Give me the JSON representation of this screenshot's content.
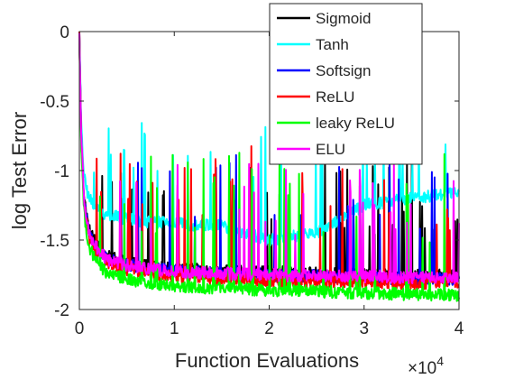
{
  "chart_data": {
    "type": "line",
    "title": "",
    "xlabel": "Function Evaluations",
    "ylabel": "log Test Error",
    "x_exponent_label": "×10",
    "x_exponent_power": "4",
    "xlim": [
      0,
      40000
    ],
    "ylim": [
      -2,
      0
    ],
    "x_ticks": [
      0,
      10000,
      20000,
      30000,
      40000
    ],
    "x_tick_labels": [
      "0",
      "1",
      "2",
      "3",
      "4"
    ],
    "y_ticks": [
      -2,
      -1.5,
      -1,
      -0.5,
      0
    ],
    "y_tick_labels": [
      "-2",
      "-1.5",
      "-1",
      "-0.5",
      "0"
    ],
    "grid": false,
    "legend_position": "top-right",
    "x": [
      0,
      200,
      500,
      1000,
      2000,
      3000,
      5000,
      7500,
      10000,
      15000,
      20000,
      25000,
      30000,
      35000,
      40000
    ],
    "series": [
      {
        "name": "Sigmoid",
        "color": "#000000",
        "values": [
          -0.02,
          -0.75,
          -1.2,
          -1.42,
          -1.55,
          -1.62,
          -1.66,
          -1.69,
          -1.71,
          -1.72,
          -1.73,
          -1.74,
          -1.75,
          -1.75,
          -1.76
        ],
        "spike_peak": -0.85
      },
      {
        "name": "Tanh",
        "color": "#00ffff",
        "values": [
          -0.02,
          -0.7,
          -1.05,
          -1.2,
          -1.28,
          -1.32,
          -1.35,
          -1.37,
          -1.38,
          -1.4,
          -1.5,
          -1.45,
          -1.25,
          -1.2,
          -1.15
        ],
        "spike_peak": -0.6
      },
      {
        "name": "Softsign",
        "color": "#0000ff",
        "values": [
          -0.02,
          -0.78,
          -1.22,
          -1.45,
          -1.58,
          -1.64,
          -1.68,
          -1.7,
          -1.72,
          -1.74,
          -1.75,
          -1.76,
          -1.77,
          -1.78,
          -1.78
        ],
        "spike_peak": -0.88
      },
      {
        "name": "ReLU",
        "color": "#ff0000",
        "values": [
          -0.02,
          -0.8,
          -1.25,
          -1.48,
          -1.6,
          -1.66,
          -1.71,
          -1.74,
          -1.76,
          -1.78,
          -1.79,
          -1.8,
          -1.8,
          -1.81,
          -1.8
        ],
        "spike_peak": -0.82
      },
      {
        "name": "leaky ReLU",
        "color": "#00ff00",
        "values": [
          -0.02,
          -0.82,
          -1.3,
          -1.55,
          -1.68,
          -1.74,
          -1.78,
          -1.81,
          -1.83,
          -1.85,
          -1.86,
          -1.87,
          -1.88,
          -1.89,
          -1.9
        ],
        "spike_peak": -0.85
      },
      {
        "name": "ELU",
        "color": "#ff00ff",
        "values": [
          -0.02,
          -0.76,
          -1.2,
          -1.45,
          -1.58,
          -1.64,
          -1.68,
          -1.71,
          -1.73,
          -1.74,
          -1.75,
          -1.76,
          -1.76,
          -1.77,
          -1.77
        ],
        "spike_peak": -0.95
      }
    ]
  }
}
